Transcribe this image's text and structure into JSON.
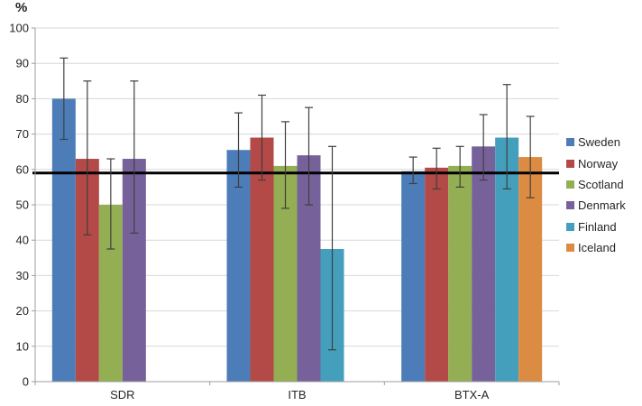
{
  "chart_data": {
    "type": "bar",
    "title": "",
    "ylabel": "%",
    "xlabel": "",
    "ylim": [
      0,
      100
    ],
    "yticks": [
      0,
      10,
      20,
      30,
      40,
      50,
      60,
      70,
      80,
      90,
      100
    ],
    "grid": true,
    "legend_position": "right",
    "categories": [
      "SDR",
      "ITB",
      "BTX-A"
    ],
    "series": [
      {
        "name": "Sweden",
        "color": "#4C7DB8",
        "values": [
          80,
          65.5,
          59.5
        ],
        "error_low": [
          68.5,
          55,
          56
        ],
        "error_high": [
          91.5,
          76,
          63.5
        ]
      },
      {
        "name": "Norway",
        "color": "#B34A47",
        "values": [
          63,
          69,
          60.5
        ],
        "error_low": [
          41.5,
          57,
          54.5
        ],
        "error_high": [
          85,
          81,
          66
        ]
      },
      {
        "name": "Scotland",
        "color": "#94AE53",
        "values": [
          50,
          61,
          61
        ],
        "error_low": [
          37.5,
          49,
          55
        ],
        "error_high": [
          63,
          73.5,
          66.5
        ]
      },
      {
        "name": "Denmark",
        "color": "#77619B",
        "values": [
          63,
          64,
          66.5
        ],
        "error_low": [
          42,
          50,
          57
        ],
        "error_high": [
          85,
          77.5,
          75.5
        ]
      },
      {
        "name": "Finland",
        "color": "#449FBC",
        "values": [
          null,
          37.5,
          69
        ],
        "error_low": [
          null,
          9,
          54.5
        ],
        "error_high": [
          null,
          66.5,
          84
        ]
      },
      {
        "name": "Iceland",
        "color": "#DC8C42",
        "values": [
          null,
          null,
          63.5
        ],
        "error_low": [
          null,
          null,
          52
        ],
        "error_high": [
          null,
          null,
          75
        ]
      }
    ],
    "reference_line": {
      "value": 59,
      "color": "#000000"
    },
    "error_bar_color": "#3F3F3F"
  }
}
